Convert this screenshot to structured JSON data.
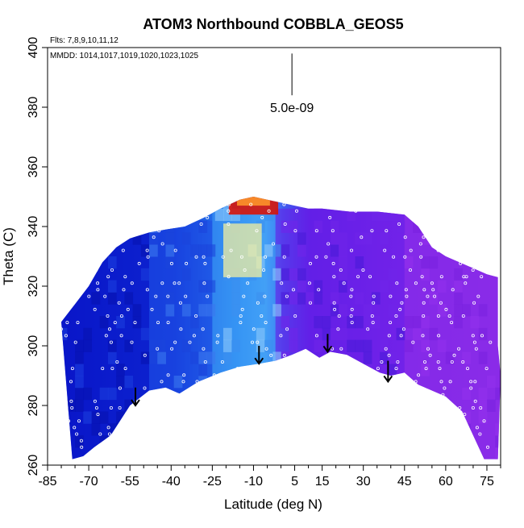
{
  "chart_data": {
    "type": "heatmap",
    "title": "ATOM3 Northbound COBBLA_GEOS5",
    "flights_note": "Flts: 7,8,9,10,11,12",
    "dates_note": "MMDD: 1014,1017,1019,1020,1023,1025",
    "xlabel": "Latitude (deg N)",
    "ylabel": "Theta (C)",
    "xlim": [
      -85,
      80
    ],
    "ylim": [
      260,
      400
    ],
    "x_ticks": [
      -85,
      -70,
      -55,
      -40,
      -25,
      -10,
      5,
      15,
      30,
      45,
      60,
      75
    ],
    "y_ticks": [
      260,
      280,
      300,
      320,
      340,
      360,
      380,
      400
    ],
    "scale_bar_label": "5.0e-09",
    "colors": {
      "dark_blue": "#0a14c8",
      "blue": "#1e4ae6",
      "light_blue": "#3d9af5",
      "purple": "#6a1ee8",
      "violet": "#8a2be8",
      "yellow": "#fff59a",
      "red": "#d7140a"
    },
    "lower_boundary": [
      [
        -76,
        262
      ],
      [
        -72,
        263
      ],
      [
        -68,
        266
      ],
      [
        -62,
        270
      ],
      [
        -55,
        280
      ],
      [
        -48,
        285
      ],
      [
        -42,
        286
      ],
      [
        -37,
        284
      ],
      [
        -30,
        288
      ],
      [
        -22,
        291
      ],
      [
        -15,
        293
      ],
      [
        -8,
        294
      ],
      [
        -2,
        295
      ],
      [
        4,
        297
      ],
      [
        9,
        299
      ],
      [
        14,
        296
      ],
      [
        18,
        298
      ],
      [
        24,
        297
      ],
      [
        30,
        294
      ],
      [
        36,
        291
      ],
      [
        40,
        290
      ],
      [
        45,
        291
      ],
      [
        50,
        287
      ],
      [
        55,
        285
      ],
      [
        60,
        283
      ],
      [
        66,
        278
      ],
      [
        70,
        270
      ],
      [
        74,
        262
      ],
      [
        79,
        262
      ]
    ],
    "upper_boundary": [
      [
        -80,
        308
      ],
      [
        -75,
        314
      ],
      [
        -70,
        320
      ],
      [
        -65,
        328
      ],
      [
        -60,
        333
      ],
      [
        -55,
        336
      ],
      [
        -48,
        338
      ],
      [
        -42,
        339
      ],
      [
        -35,
        340
      ],
      [
        -28,
        343
      ],
      [
        -22,
        346
      ],
      [
        -15,
        349
      ],
      [
        -10,
        350
      ],
      [
        -5,
        349
      ],
      [
        0,
        348
      ],
      [
        5,
        347
      ],
      [
        10,
        346
      ],
      [
        15,
        346
      ],
      [
        25,
        345
      ],
      [
        35,
        345
      ],
      [
        45,
        344
      ],
      [
        50,
        340
      ],
      [
        55,
        333
      ],
      [
        60,
        330
      ],
      [
        65,
        328
      ],
      [
        70,
        326
      ],
      [
        75,
        324
      ],
      [
        79,
        323
      ],
      [
        79,
        300
      ],
      [
        80,
        290
      ],
      [
        79,
        262
      ]
    ],
    "regions": [
      {
        "name": "southern-dark-blue",
        "x": [
          -80,
          -48
        ],
        "y": [
          262,
          338
        ],
        "color": "dark_blue"
      },
      {
        "name": "mid-south-blue",
        "x": [
          -48,
          -25
        ],
        "y": [
          284,
          342
        ],
        "color": "blue"
      },
      {
        "name": "tropical-light-blue",
        "x": [
          -25,
          -2
        ],
        "y": [
          290,
          346
        ],
        "color": "light_blue"
      },
      {
        "name": "northern-purple",
        "x": [
          -2,
          45
        ],
        "y": [
          290,
          346
        ],
        "color": "purple"
      },
      {
        "name": "far-north-violet",
        "x": [
          45,
          80
        ],
        "y": [
          262,
          344
        ],
        "color": "violet"
      }
    ],
    "hotspots": [
      {
        "name": "upper-tropical-maximum",
        "x": -10,
        "y": 347,
        "w": 18,
        "h": 6,
        "color": "red"
      },
      {
        "name": "upper-tropical-yellow-plume",
        "x": -14,
        "y": 332,
        "w": 14,
        "h": 18,
        "color": "yellow"
      }
    ],
    "descent_arrows": [
      {
        "x": -53,
        "y_top": 286,
        "y_bottom": 280
      },
      {
        "x": -8,
        "y_top": 300,
        "y_bottom": 294
      },
      {
        "x": 17,
        "y_top": 304,
        "y_bottom": 298
      },
      {
        "x": 39,
        "y_top": 295,
        "y_bottom": 288
      }
    ],
    "scale_bar": {
      "x": 4,
      "y_top": 398,
      "y_bottom": 384
    }
  }
}
